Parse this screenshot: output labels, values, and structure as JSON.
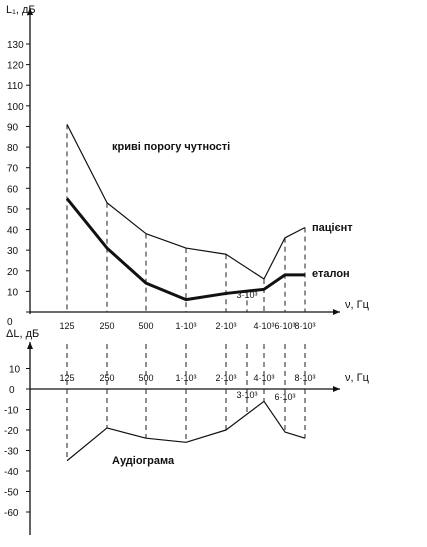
{
  "chart_data": [
    {
      "type": "line",
      "ylabel": "L₁, дБ",
      "xlabel": "ν, Гц",
      "ylim": [
        0,
        130
      ],
      "yticks": [
        "130",
        "120",
        "110",
        "100",
        "90",
        "80",
        "70",
        "60",
        "50",
        "40",
        "30",
        "20",
        "10",
        "0"
      ],
      "x": [
        125,
        250,
        500,
        1000,
        2000,
        3000,
        4000,
        6000,
        8000
      ],
      "x_tick_labels": [
        "125",
        "250",
        "500",
        "1·10³",
        "2·10³",
        "3·10³",
        "4·10³",
        "6·10³",
        "8·10³"
      ],
      "series": [
        {
          "name": "пацієнт",
          "values": [
            91,
            53,
            38,
            31,
            28,
            null,
            16,
            36,
            41
          ],
          "style": "thin"
        },
        {
          "name": "еталон",
          "values": [
            55,
            31,
            14,
            6,
            9,
            null,
            11,
            18,
            18
          ],
          "style": "bold"
        }
      ],
      "annotations": [
        "криві порогу чутності"
      ],
      "grid": false
    },
    {
      "type": "line",
      "ylabel": "ΔL, дБ",
      "xlabel": "ν, Гц",
      "ylim": [
        -60,
        10
      ],
      "yticks": [
        "10",
        "0",
        "-10",
        "-20",
        "-30",
        "-40",
        "-50",
        "-60"
      ],
      "x": [
        125,
        250,
        500,
        1000,
        2000,
        3000,
        4000,
        6000,
        8000
      ],
      "x_tick_labels": [
        "125",
        "250",
        "500",
        "1·10³",
        "2·10³",
        "3·10³",
        "4·10³",
        "6·10³",
        "8·10³"
      ],
      "series": [
        {
          "name": "Аудіограма",
          "values": [
            -35,
            -19,
            -24,
            -26,
            -20,
            null,
            -6,
            -21,
            -24
          ],
          "style": "thin"
        }
      ],
      "grid": false
    }
  ]
}
